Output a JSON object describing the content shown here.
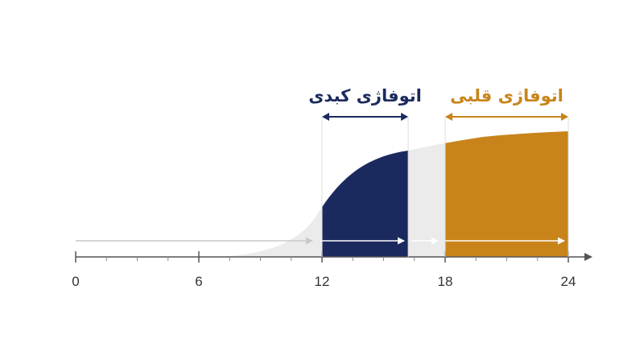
{
  "chart_data": {
    "type": "region",
    "xlim": [
      0,
      24
    ],
    "xticks": [
      0,
      6,
      12,
      18,
      24
    ],
    "minor_xticks": [
      1.5,
      3,
      4.5,
      7.5,
      9,
      10.5,
      13.5,
      15,
      16.5,
      19.5,
      21,
      22.5
    ],
    "regions": [
      {
        "label": "اتوفاژی کبدی",
        "start": 12,
        "end": 16.2,
        "color": "#1b2a5e"
      },
      {
        "label": "اتوفاژی قلبی",
        "start": 18,
        "end": 24,
        "color": "#c8841a"
      }
    ]
  }
}
